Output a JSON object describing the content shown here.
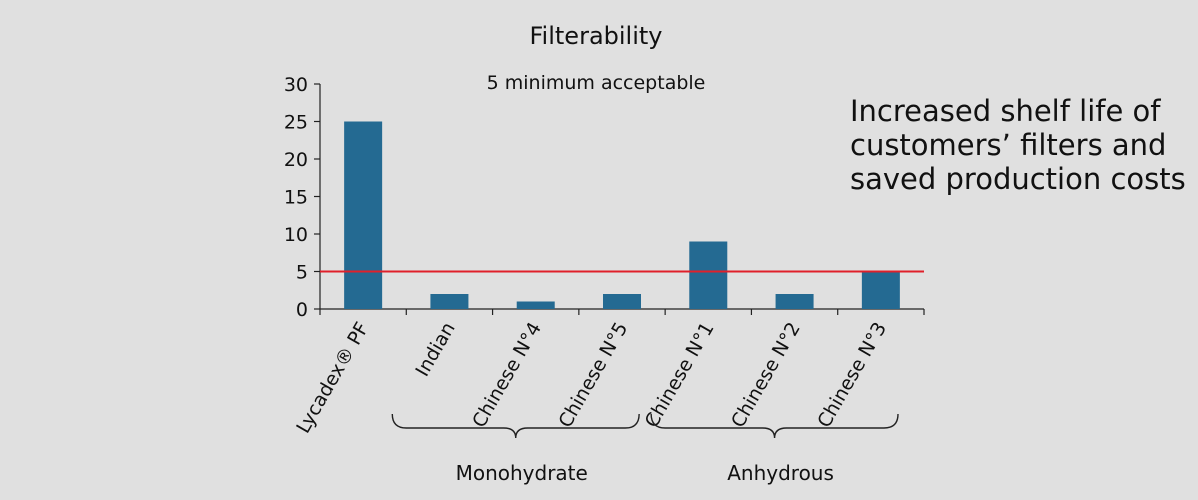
{
  "chart_data": {
    "type": "bar",
    "title": "Filterability",
    "subtitle": "5 minimum acceptable",
    "categories": [
      "Lycadex® PF",
      "Indian",
      "Chinese N°4",
      "Chinese N°5",
      "Chinese N°1",
      "Chinese N°2",
      "Chinese N°3"
    ],
    "values": [
      25,
      2,
      1,
      2,
      9,
      2,
      5
    ],
    "ylim": [
      0,
      30
    ],
    "yticks": [
      "0",
      "5",
      "10",
      "15",
      "20",
      "25",
      "30"
    ],
    "xlabel": "",
    "ylabel": "",
    "reference_line": {
      "value": 5,
      "label": "5 minimum acceptable"
    },
    "groups": [
      {
        "label": "Monohydrate",
        "from": 1,
        "to": 3
      },
      {
        "label": "Anhydrous",
        "from": 4,
        "to": 6
      }
    ],
    "bar_color": "#246a92",
    "reference_color": "#e0202a",
    "grid": false,
    "legend": "none"
  },
  "side_note": {
    "lines": [
      "Increased shelf life of",
      "customers’ filters and",
      "saved production costs"
    ]
  }
}
